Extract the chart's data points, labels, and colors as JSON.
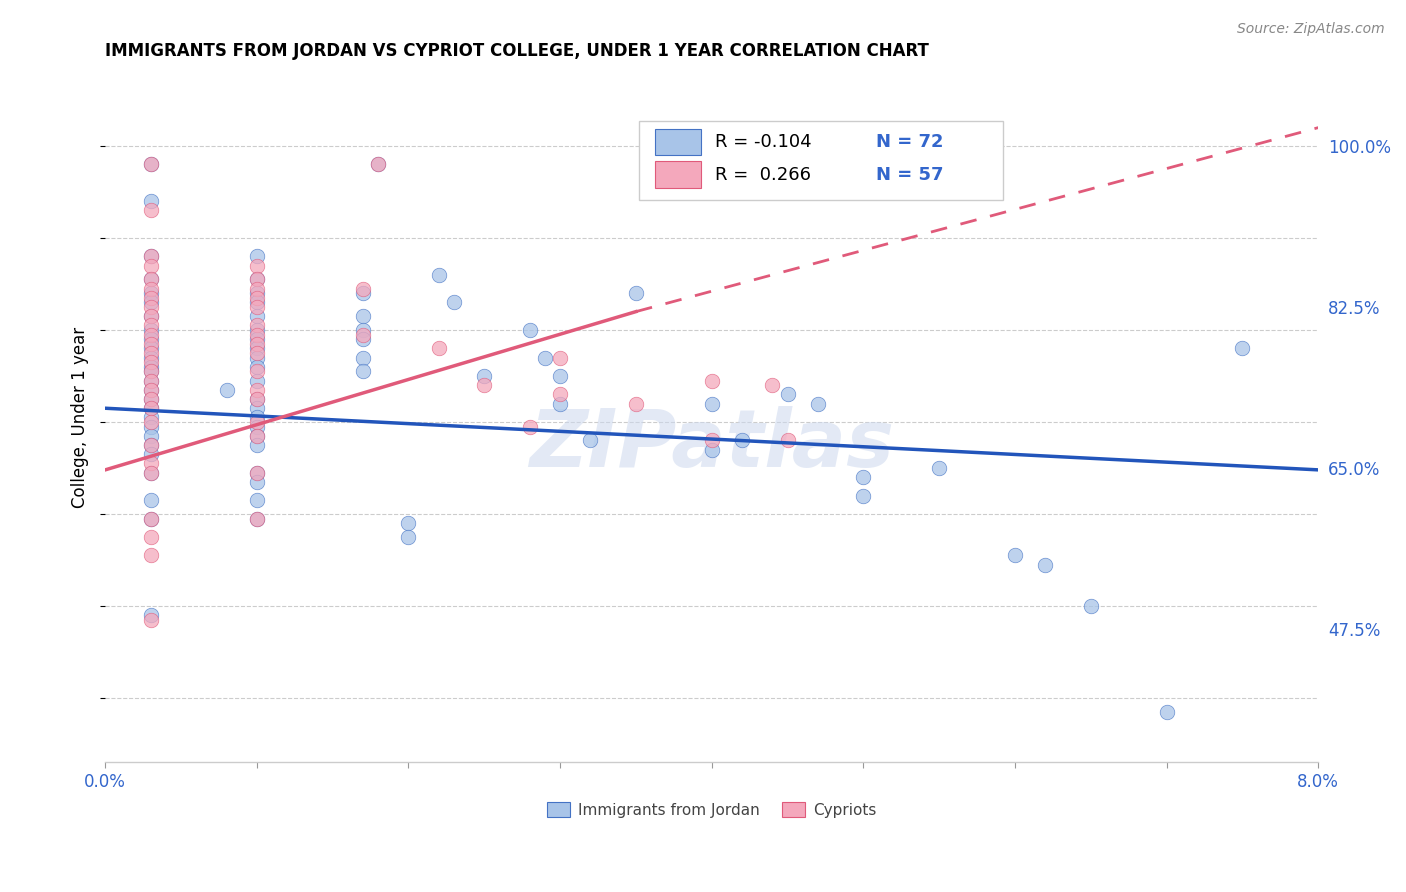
{
  "title": "IMMIGRANTS FROM JORDAN VS CYPRIOT COLLEGE, UNDER 1 YEAR CORRELATION CHART",
  "source": "Source: ZipAtlas.com",
  "ylabel": "College, Under 1 year",
  "xlim": [
    0.0,
    0.08
  ],
  "ylim": [
    0.33,
    1.08
  ],
  "yticks": [
    0.475,
    0.65,
    0.825,
    1.0
  ],
  "ytick_labels": [
    "47.5%",
    "65.0%",
    "82.5%",
    "100.0%"
  ],
  "xtick_labels": [
    "0.0%",
    "",
    "",
    "",
    "",
    "",
    "",
    "",
    "8.0%"
  ],
  "watermark": "ZIPatlas",
  "blue_color": "#a8c4e8",
  "pink_color": "#f4a8bc",
  "blue_edge_color": "#4472c4",
  "pink_edge_color": "#e05a7a",
  "blue_line_color": "#2255bb",
  "pink_line_color": "#e05a7a",
  "blue_line": [
    0.0,
    0.08,
    0.715,
    0.648
  ],
  "pink_line_solid": [
    0.0,
    0.035,
    0.648,
    0.82
  ],
  "pink_line_dashed": [
    0.035,
    0.08,
    0.82,
    1.02
  ],
  "blue_scatter": [
    [
      0.003,
      0.98
    ],
    [
      0.018,
      0.98
    ],
    [
      0.003,
      0.94
    ],
    [
      0.003,
      0.88
    ],
    [
      0.01,
      0.88
    ],
    [
      0.003,
      0.855
    ],
    [
      0.01,
      0.855
    ],
    [
      0.003,
      0.84
    ],
    [
      0.01,
      0.84
    ],
    [
      0.017,
      0.84
    ],
    [
      0.003,
      0.83
    ],
    [
      0.01,
      0.83
    ],
    [
      0.003,
      0.815
    ],
    [
      0.01,
      0.815
    ],
    [
      0.017,
      0.815
    ],
    [
      0.003,
      0.8
    ],
    [
      0.01,
      0.8
    ],
    [
      0.017,
      0.8
    ],
    [
      0.003,
      0.79
    ],
    [
      0.01,
      0.79
    ],
    [
      0.017,
      0.79
    ],
    [
      0.003,
      0.78
    ],
    [
      0.01,
      0.78
    ],
    [
      0.003,
      0.77
    ],
    [
      0.01,
      0.77
    ],
    [
      0.017,
      0.77
    ],
    [
      0.003,
      0.76
    ],
    [
      0.01,
      0.76
    ],
    [
      0.003,
      0.755
    ],
    [
      0.017,
      0.755
    ],
    [
      0.003,
      0.745
    ],
    [
      0.01,
      0.745
    ],
    [
      0.003,
      0.735
    ],
    [
      0.008,
      0.735
    ],
    [
      0.003,
      0.725
    ],
    [
      0.01,
      0.725
    ],
    [
      0.003,
      0.715
    ],
    [
      0.01,
      0.715
    ],
    [
      0.003,
      0.705
    ],
    [
      0.01,
      0.705
    ],
    [
      0.003,
      0.695
    ],
    [
      0.01,
      0.695
    ],
    [
      0.003,
      0.685
    ],
    [
      0.01,
      0.685
    ],
    [
      0.003,
      0.675
    ],
    [
      0.01,
      0.675
    ],
    [
      0.003,
      0.665
    ],
    [
      0.003,
      0.645
    ],
    [
      0.01,
      0.645
    ],
    [
      0.01,
      0.635
    ],
    [
      0.003,
      0.615
    ],
    [
      0.01,
      0.615
    ],
    [
      0.003,
      0.595
    ],
    [
      0.01,
      0.595
    ],
    [
      0.02,
      0.59
    ],
    [
      0.02,
      0.575
    ],
    [
      0.003,
      0.49
    ],
    [
      0.022,
      0.86
    ],
    [
      0.023,
      0.83
    ],
    [
      0.025,
      0.75
    ],
    [
      0.028,
      0.8
    ],
    [
      0.029,
      0.77
    ],
    [
      0.03,
      0.75
    ],
    [
      0.03,
      0.72
    ],
    [
      0.032,
      0.68
    ],
    [
      0.035,
      0.84
    ],
    [
      0.04,
      0.72
    ],
    [
      0.04,
      0.67
    ],
    [
      0.042,
      0.68
    ],
    [
      0.045,
      0.73
    ],
    [
      0.047,
      0.72
    ],
    [
      0.05,
      0.64
    ],
    [
      0.05,
      0.62
    ],
    [
      0.055,
      0.65
    ],
    [
      0.06,
      0.555
    ],
    [
      0.062,
      0.545
    ],
    [
      0.065,
      0.5
    ],
    [
      0.07,
      0.385
    ],
    [
      0.075,
      0.78
    ]
  ],
  "pink_scatter": [
    [
      0.003,
      0.98
    ],
    [
      0.018,
      0.98
    ],
    [
      0.003,
      0.93
    ],
    [
      0.003,
      0.88
    ],
    [
      0.003,
      0.87
    ],
    [
      0.01,
      0.87
    ],
    [
      0.003,
      0.855
    ],
    [
      0.01,
      0.855
    ],
    [
      0.003,
      0.845
    ],
    [
      0.01,
      0.845
    ],
    [
      0.017,
      0.845
    ],
    [
      0.003,
      0.835
    ],
    [
      0.01,
      0.835
    ],
    [
      0.003,
      0.825
    ],
    [
      0.01,
      0.825
    ],
    [
      0.003,
      0.815
    ],
    [
      0.003,
      0.805
    ],
    [
      0.01,
      0.805
    ],
    [
      0.003,
      0.795
    ],
    [
      0.01,
      0.795
    ],
    [
      0.017,
      0.795
    ],
    [
      0.003,
      0.785
    ],
    [
      0.01,
      0.785
    ],
    [
      0.003,
      0.775
    ],
    [
      0.01,
      0.775
    ],
    [
      0.003,
      0.765
    ],
    [
      0.003,
      0.755
    ],
    [
      0.01,
      0.755
    ],
    [
      0.003,
      0.745
    ],
    [
      0.003,
      0.735
    ],
    [
      0.01,
      0.735
    ],
    [
      0.003,
      0.725
    ],
    [
      0.01,
      0.725
    ],
    [
      0.003,
      0.715
    ],
    [
      0.003,
      0.7
    ],
    [
      0.01,
      0.7
    ],
    [
      0.01,
      0.685
    ],
    [
      0.003,
      0.675
    ],
    [
      0.003,
      0.655
    ],
    [
      0.003,
      0.645
    ],
    [
      0.01,
      0.645
    ],
    [
      0.003,
      0.595
    ],
    [
      0.01,
      0.595
    ],
    [
      0.003,
      0.575
    ],
    [
      0.003,
      0.555
    ],
    [
      0.003,
      0.485
    ],
    [
      0.022,
      0.78
    ],
    [
      0.025,
      0.74
    ],
    [
      0.03,
      0.77
    ],
    [
      0.035,
      0.72
    ],
    [
      0.028,
      0.695
    ],
    [
      0.03,
      0.73
    ],
    [
      0.04,
      0.745
    ],
    [
      0.044,
      0.74
    ],
    [
      0.04,
      0.68
    ],
    [
      0.045,
      0.68
    ]
  ]
}
